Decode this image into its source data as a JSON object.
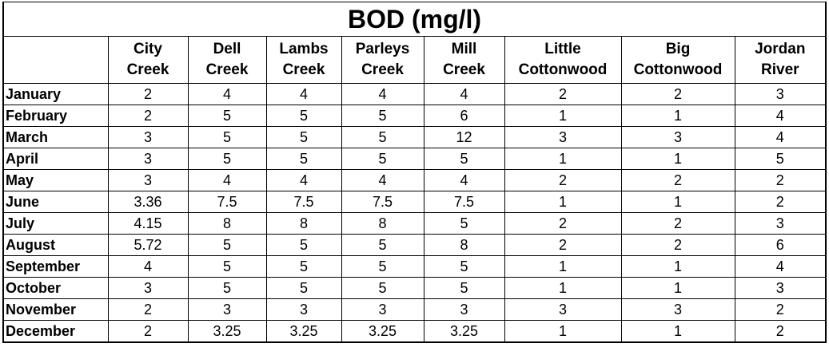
{
  "title": "BOD (mg/l)",
  "columns": [
    {
      "line1": "City",
      "line2": "Creek"
    },
    {
      "line1": "Dell",
      "line2": "Creek"
    },
    {
      "line1": "Lambs",
      "line2": "Creek"
    },
    {
      "line1": "Parleys",
      "line2": "Creek"
    },
    {
      "line1": "Mill",
      "line2": "Creek"
    },
    {
      "line1": "Little",
      "line2": "Cottonwood"
    },
    {
      "line1": "Big",
      "line2": "Cottonwood"
    },
    {
      "line1": "Jordan",
      "line2": "River"
    }
  ],
  "rows": [
    {
      "month": "January",
      "values": [
        "2",
        "4",
        "4",
        "4",
        "4",
        "2",
        "2",
        "3"
      ]
    },
    {
      "month": "February",
      "values": [
        "2",
        "5",
        "5",
        "5",
        "6",
        "1",
        "1",
        "4"
      ]
    },
    {
      "month": "March",
      "values": [
        "3",
        "5",
        "5",
        "5",
        "12",
        "3",
        "3",
        "4"
      ]
    },
    {
      "month": "April",
      "values": [
        "3",
        "5",
        "5",
        "5",
        "5",
        "1",
        "1",
        "5"
      ]
    },
    {
      "month": "May",
      "values": [
        "3",
        "4",
        "4",
        "4",
        "4",
        "2",
        "2",
        "2"
      ]
    },
    {
      "month": "June",
      "values": [
        "3.36",
        "7.5",
        "7.5",
        "7.5",
        "7.5",
        "1",
        "1",
        "2"
      ]
    },
    {
      "month": "July",
      "values": [
        "4.15",
        "8",
        "8",
        "8",
        "5",
        "2",
        "2",
        "3"
      ]
    },
    {
      "month": "August",
      "values": [
        "5.72",
        "5",
        "5",
        "5",
        "8",
        "2",
        "2",
        "6"
      ]
    },
    {
      "month": "September",
      "values": [
        "4",
        "5",
        "5",
        "5",
        "5",
        "1",
        "1",
        "4"
      ]
    },
    {
      "month": "October",
      "values": [
        "3",
        "5",
        "5",
        "5",
        "5",
        "1",
        "1",
        "3"
      ]
    },
    {
      "month": "November",
      "values": [
        "2",
        "3",
        "3",
        "3",
        "3",
        "3",
        "3",
        "2"
      ]
    },
    {
      "month": "December",
      "values": [
        "2",
        "3.25",
        "3.25",
        "3.25",
        "3.25",
        "1",
        "1",
        "2"
      ]
    }
  ]
}
